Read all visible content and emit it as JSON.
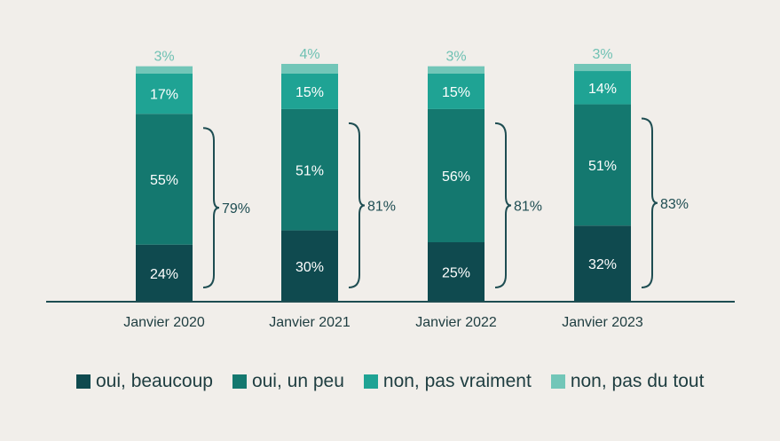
{
  "chart_data": {
    "type": "bar",
    "stacked": true,
    "categories": [
      "Janvier 2020",
      "Janvier 2021",
      "Janvier 2022",
      "Janvier 2023"
    ],
    "series": [
      {
        "name": "oui, beaucoup",
        "color": "#0f4a4f",
        "values": [
          24,
          30,
          25,
          32
        ]
      },
      {
        "name": "oui, un peu",
        "color": "#14786f",
        "values": [
          55,
          51,
          56,
          51
        ]
      },
      {
        "name": "non, pas vraiment",
        "color": "#1fa394",
        "values": [
          17,
          15,
          15,
          14
        ]
      },
      {
        "name": "non, pas du tout",
        "color": "#72c6b8",
        "values": [
          3,
          4,
          3,
          3
        ]
      }
    ],
    "brace_totals": [
      79,
      81,
      81,
      83
    ],
    "ylim": [
      0,
      100
    ],
    "grid": false,
    "legend_position": "bottom"
  }
}
